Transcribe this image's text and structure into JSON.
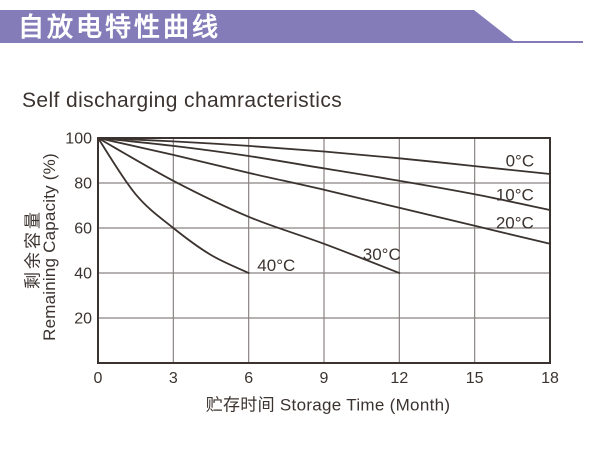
{
  "header": {
    "title": "自放电特性曲线"
  },
  "subtitle": "Self discharging chamracteristics",
  "axes": {
    "x_title": "贮存时间 Storage Time (Month)",
    "y_title_cn": "剩余容量",
    "y_title_en": "Remaining Capacity (%)"
  },
  "colors": {
    "accent": "#847CB9",
    "ink": "#3B332F",
    "grid": "#8B8482",
    "background": "#FFFFFF",
    "header_text": "#FFFFFF"
  },
  "chart_data": {
    "type": "line",
    "title": "Self discharging chamracteristics",
    "xlabel": "贮存时间 Storage Time (Month)",
    "ylabel": "剩余容量 Remaining Capacity (%)",
    "xlim": [
      0,
      18
    ],
    "ylim": [
      0,
      100
    ],
    "x_ticks": [
      0,
      3,
      6,
      9,
      12,
      15,
      18
    ],
    "y_ticks": [
      100,
      80,
      60,
      40,
      20
    ],
    "grid": true,
    "legend_position": "inline-curve-labels",
    "series": [
      {
        "name": "0°C",
        "x": [
          0,
          3,
          6,
          9,
          12,
          15,
          18
        ],
        "y": [
          100,
          98.5,
          96.5,
          94,
          91,
          87.5,
          84
        ],
        "label": {
          "text": "0°C",
          "x": 16.8,
          "y": 90
        }
      },
      {
        "name": "10°C",
        "x": [
          0,
          3,
          6,
          9,
          12,
          15,
          18
        ],
        "y": [
          100,
          96.5,
          92,
          86.5,
          81,
          75,
          68
        ],
        "label": {
          "text": "10°C",
          "x": 16.6,
          "y": 75
        }
      },
      {
        "name": "20°C",
        "x": [
          0,
          3,
          6,
          9,
          12,
          15,
          18
        ],
        "y": [
          100,
          92.5,
          84.5,
          77,
          69,
          61,
          53
        ],
        "label": {
          "text": "20°C",
          "x": 16.6,
          "y": 62.5
        }
      },
      {
        "name": "30°C",
        "x": [
          0,
          3,
          6,
          9,
          12
        ],
        "y": [
          100,
          81,
          65,
          53,
          40
        ],
        "label": {
          "text": "30°C",
          "x": 11.3,
          "y": 48.5
        }
      },
      {
        "name": "40°C",
        "x": [
          0,
          1.5,
          3,
          4.5,
          6
        ],
        "y": [
          100,
          75,
          60,
          48,
          40
        ],
        "label": {
          "text": "40°C",
          "x": 7.1,
          "y": 43.5
        }
      }
    ]
  }
}
